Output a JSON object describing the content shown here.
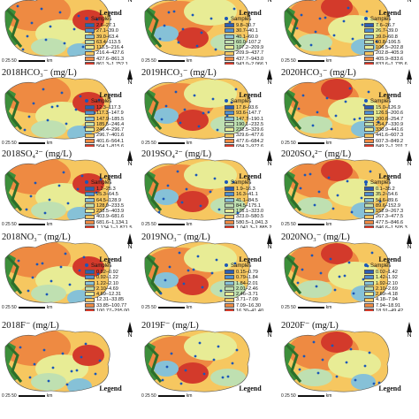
{
  "legend_title": "Legend",
  "samples_label": "Samples",
  "scale": {
    "ticks": [
      "0",
      "25",
      "50"
    ],
    "unit": "km"
  },
  "palette": [
    "#2c5fb3",
    "#4f8fcf",
    "#86c1d7",
    "#bfe0b1",
    "#e8ec95",
    "#f6c760",
    "#ee8a42",
    "#d33a2b"
  ],
  "panels": [
    {
      "title": "",
      "legend": [
        "2.6–27.1",
        "27.1–39.0",
        "39.0–63.4",
        "63.4–113.5",
        "113.5–216.4",
        "216.4–427.6",
        "427.6–861.3",
        "861.3–1,752.1"
      ]
    },
    {
      "title": "",
      "legend": [
        "9.8–30.7",
        "30.7–40.1",
        "40.1–60.0",
        "60.0–107.2",
        "107.2–209.9",
        "209.9–437.7",
        "437.7–943.0",
        "943.0–2,066.1"
      ]
    },
    {
      "title": "",
      "legend": [
        "7.6–26.7",
        "26.7–39.0",
        "39.0–60.8",
        "60.8–106.5",
        "106.5–202.8",
        "202.8–405.9",
        "405.9–833.6",
        "833.6–1,735.6"
      ]
    },
    {
      "title": "2018HCO₃⁻ (mg/L)",
      "legend": [
        "12.3–117.3",
        "117.3–147.9",
        "147.9–185.5",
        "185.5–246.4",
        "246.4–296.7",
        "296.7–401.6",
        "401.6–564.1",
        "564.1–815.6"
      ]
    },
    {
      "title": "2019HCO₃⁻ (mg/L)",
      "legend": [
        "17.8–93.6",
        "93.6–147.7",
        "147.7–190.1",
        "190.1–232.5",
        "232.5–329.6",
        "329.6–477.6",
        "477.6–684.2",
        "684.2–972.6"
      ]
    },
    {
      "title": "2020HCO₃⁻ (mg/L)",
      "legend": [
        "15.0–126.9",
        "126.9–200.6",
        "200.6–254.7",
        "254.7–330.9",
        "330.9–441.6",
        "441.6–607.3",
        "607.3–849.2",
        "849.2–1,201.7"
      ]
    },
    {
      "title": "2018SO₄²⁻ (mg/L)",
      "legend": [
        "1.2–25.3",
        "25.3–64.5",
        "64.5–128.9",
        "128.9–233.5",
        "233.5–403.9",
        "403.9–681.6",
        "681.6–1,134.1",
        "1,134.1–1,871.5"
      ]
    },
    {
      "title": "2019SO₄²⁻ (mg/L)",
      "legend": [
        "1.9–16.3",
        "16.3–41.1",
        "41.1–84.5",
        "84.5–175.1",
        "175.1–323.0",
        "323.0–580.5",
        "580.5–1,041.3",
        "1,041.3–1,885.2"
      ]
    },
    {
      "title": "2020SO₄²⁻ (mg/L)",
      "legend": [
        "0.1–35.2",
        "35.2–54.6",
        "54.6–89.6",
        "89.6–152.9",
        "152.9–267.3",
        "267.3–477.5",
        "477.5–846.6",
        "846.6–1,505.3"
      ]
    },
    {
      "title": "2018NO₃⁻ (mg/L)",
      "legend": [
        "0.82–0.92",
        "0.92–1.22",
        "1.22–2.10",
        "2.10–4.69",
        "4.69–12.31",
        "12.31–33.85",
        "33.85–100.77",
        "100.77–295.00"
      ]
    },
    {
      "title": "2019NO₃⁻ (mg/L)",
      "legend": [
        "0.15–0.79",
        "0.79–1.84",
        "1.84–2.01",
        "2.01–2.46",
        "2.46–3.71",
        "3.71–7.09",
        "7.09–16.30",
        "16.30–41.40"
      ]
    },
    {
      "title": "2020NO₃⁻ (mg/L)",
      "legend": [
        "0.02–1.42",
        "1.42–1.92",
        "1.92–2.10",
        "2.10–2.69",
        "2.69–4.18",
        "4.18–7.94",
        "7.94–18.91",
        "18.91–49.42"
      ]
    },
    {
      "title": "2018F⁻ (mg/L)",
      "legend": []
    },
    {
      "title": "2019F⁻ (mg/L)",
      "legend": []
    },
    {
      "title": "2020F⁻ (mg/L)",
      "legend": []
    }
  ]
}
